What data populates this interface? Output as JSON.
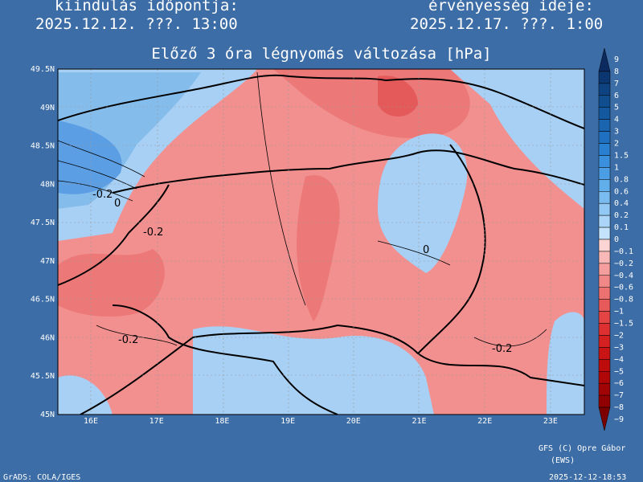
{
  "header": {
    "run_label": "kiindulás időpontja:",
    "run_time": "2025.12.12. ???. 13:00",
    "valid_label": "érvényesség ideje:",
    "valid_time": "2025.12.17. ???. 1:00",
    "title": "Előző 3 óra légnyomás változása [hPa]"
  },
  "map": {
    "lat_labels": [
      "49.5N",
      "49N",
      "48.5N",
      "48N",
      "47.5N",
      "47N",
      "46.5N",
      "46N",
      "45.5N",
      "45N"
    ],
    "lon_labels": [
      "16E",
      "17E",
      "18E",
      "19E",
      "20E",
      "21E",
      "22E",
      "23E"
    ],
    "contour_labels": [
      "-0.2",
      "0",
      "-0.2",
      "0",
      "-0.2",
      "-0.2"
    ]
  },
  "colorbar": {
    "labels": [
      "9",
      "8",
      "7",
      "6",
      "5",
      "4",
      "3",
      "2",
      "1.5",
      "1",
      "0.8",
      "0.6",
      "0.4",
      "0.2",
      "0.1",
      "0",
      "−0.1",
      "−0.2",
      "−0.4",
      "−0.6",
      "−0.8",
      "−1",
      "−1.5",
      "−2",
      "−3",
      "−4",
      "−5",
      "−6",
      "−7",
      "−8",
      "−9"
    ],
    "colors": [
      "#0a2a60",
      "#0c3670",
      "#0e4280",
      "#104e90",
      "#1458a0",
      "#1a64b0",
      "#1f70c0",
      "#2a80d0",
      "#3a90dc",
      "#4c9ee4",
      "#62aeea",
      "#7abcf0",
      "#92c8f4",
      "#aad4f8",
      "#c4e2fc",
      "#fcd4d4",
      "#f8b8b8",
      "#f49e9e",
      "#f08888",
      "#ec7272",
      "#e85a5a",
      "#e44444",
      "#de3030",
      "#d42020",
      "#c81414",
      "#bc0c0c",
      "#b00808",
      "#a00404",
      "#900000",
      "#7c0000"
    ]
  },
  "footer": {
    "credit": "GFS (C) Opre Gábor",
    "credit_sub": "(EWS)",
    "software": "GrADS: COLA/IGES",
    "timestamp": "2025-12-12-18:53"
  }
}
